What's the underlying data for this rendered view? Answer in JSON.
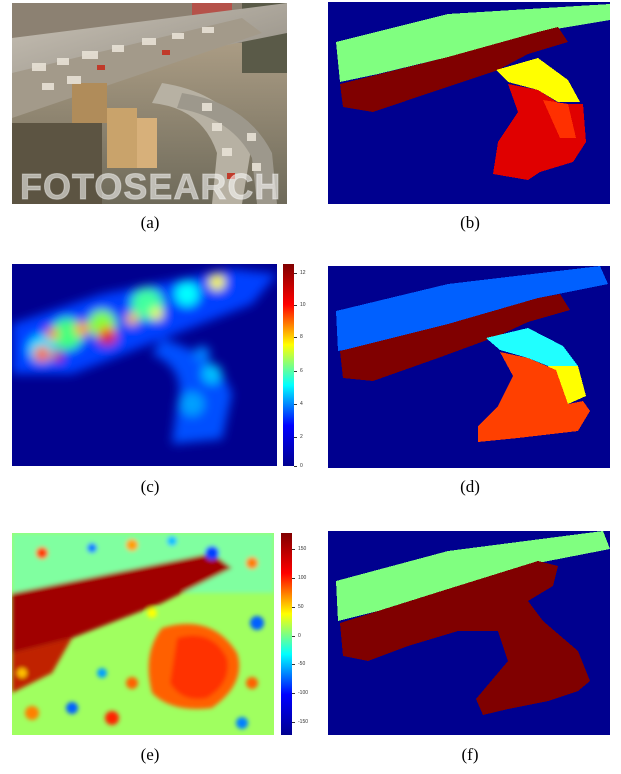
{
  "figure": {
    "panels": [
      {
        "id": "a",
        "caption": "(a)",
        "content": "photo-highway-traffic",
        "watermark": "FOTOSEARCH"
      },
      {
        "id": "b",
        "caption": "(b)",
        "content": "segmentation-map"
      },
      {
        "id": "c",
        "caption": "(c)",
        "content": "heatmap-jet"
      },
      {
        "id": "d",
        "caption": "(d)",
        "content": "segmentation-map"
      },
      {
        "id": "e",
        "caption": "(e)",
        "content": "heatmap-jet"
      },
      {
        "id": "f",
        "caption": "(f)",
        "content": "segmentation-map"
      }
    ],
    "colorbar_c": {
      "ticks": [
        "12",
        "10",
        "8",
        "6",
        "4",
        "2",
        "0"
      ]
    },
    "colorbar_e": {
      "ticks": [
        "150",
        "100",
        "50",
        "0",
        "-50",
        "-100",
        "-150"
      ]
    },
    "colors": {
      "background_blue": "#00008f",
      "light_green": "#80ff80",
      "dark_red": "#800000",
      "yellow": "#ffff00",
      "orange": "#ff6000",
      "red": "#e00000",
      "cyan": "#20ffff",
      "mid_blue": "#0060ff",
      "orange_red": "#ff4000"
    }
  }
}
